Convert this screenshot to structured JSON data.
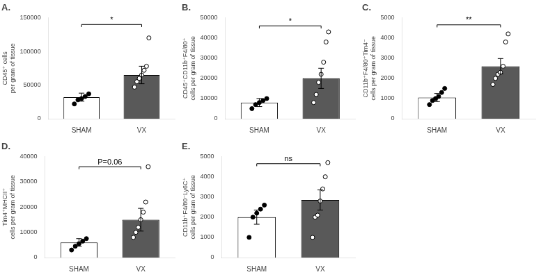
{
  "chart_data": [
    {
      "type": "bar",
      "title": "A.",
      "ylabel": "CD45⁺ cells\nper gram of tissue",
      "categories": [
        "SHAM",
        "VX"
      ],
      "values": [
        32000,
        65000
      ],
      "errors": [
        6000,
        13000
      ],
      "colors": [
        "#ffffff",
        "#595959"
      ],
      "points": [
        {
          "values": [
            22000,
            28000,
            30000,
            33000,
            37000
          ],
          "color": "#000000"
        },
        {
          "values": [
            47000,
            55000,
            60000,
            65000,
            72000,
            78000,
            120000
          ],
          "color": "#ffffff"
        }
      ],
      "annotation": {
        "text": "*",
        "y": 140000
      },
      "ylim": [
        0,
        150000
      ],
      "yticks": [
        0,
        50000,
        100000,
        150000
      ],
      "grid": false
    },
    {
      "type": "bar",
      "title": "B.",
      "ylabel": "CD45⁺CD11b⁺F4/80⁺\ncells per gram of tissue",
      "categories": [
        "SHAM",
        "VX"
      ],
      "values": [
        8000,
        20000
      ],
      "errors": [
        2000,
        5000
      ],
      "colors": [
        "#ffffff",
        "#595959"
      ],
      "points": [
        {
          "values": [
            5000,
            7000,
            8000,
            9000,
            10000
          ],
          "color": "#000000"
        },
        {
          "values": [
            8000,
            12000,
            18000,
            22000,
            28000,
            38000,
            43000
          ],
          "color": "#ffffff"
        }
      ],
      "annotation": {
        "text": "*",
        "y": 46000
      },
      "ylim": [
        0,
        50000
      ],
      "yticks": [
        0,
        10000,
        20000,
        30000,
        40000,
        50000
      ],
      "grid": false
    },
    {
      "type": "bar",
      "title": "C.",
      "ylabel": "CD11b⁺F4/80⁺Tim4⁻\ncells per gram of tissue",
      "categories": [
        "SHAM",
        "VX"
      ],
      "values": [
        1050,
        2600
      ],
      "errors": [
        200,
        380
      ],
      "colors": [
        "#ffffff",
        "#595959"
      ],
      "points": [
        {
          "values": [
            700,
            900,
            1000,
            1100,
            1300,
            1500
          ],
          "color": "#000000"
        },
        {
          "values": [
            1700,
            2000,
            2200,
            2300,
            2600,
            3800,
            4200
          ],
          "color": "#ffffff"
        }
      ],
      "annotation": {
        "text": "**",
        "y": 4650
      },
      "ylim": [
        0,
        5000
      ],
      "yticks": [
        0,
        1000,
        2000,
        3000,
        4000,
        5000
      ],
      "grid": false
    },
    {
      "type": "bar",
      "title": "D.",
      "ylabel": "Tim4⁺MHCII⁺\ncells per gram of tissue",
      "categories": [
        "SHAM",
        "VX"
      ],
      "values": [
        6000,
        15000
      ],
      "errors": [
        1500,
        4500
      ],
      "colors": [
        "#ffffff",
        "#595959"
      ],
      "points": [
        {
          "values": [
            3000,
            4500,
            5500,
            6500,
            7500
          ],
          "color": "#000000"
        },
        {
          "values": [
            8000,
            10000,
            12000,
            15000,
            18000,
            22000,
            36000
          ],
          "color": "#ffffff"
        }
      ],
      "annotation": {
        "text": "P=0.06",
        "y": 36000
      },
      "ylim": [
        0,
        40000
      ],
      "yticks": [
        0,
        10000,
        20000,
        30000,
        40000
      ],
      "grid": false
    },
    {
      "type": "bar",
      "title": "E.",
      "ylabel": "CD11b⁺F4/80⁻Ly6C⁺\ncells per gram of tissue",
      "categories": [
        "SHAM",
        "VX"
      ],
      "values": [
        2000,
        2850
      ],
      "errors": [
        350,
        500
      ],
      "colors": [
        "#ffffff",
        "#595959"
      ],
      "points": [
        {
          "values": [
            1000,
            2000,
            2200,
            2400,
            2600
          ],
          "color": "#000000"
        },
        {
          "values": [
            1000,
            2000,
            2100,
            2800,
            3400,
            4000,
            4700
          ],
          "color": "#ffffff"
        }
      ],
      "annotation": {
        "text": "ns",
        "y": 4650
      },
      "ylim": [
        0,
        5000
      ],
      "yticks": [
        0,
        1000,
        2000,
        3000,
        4000,
        5000
      ],
      "grid": false
    }
  ]
}
